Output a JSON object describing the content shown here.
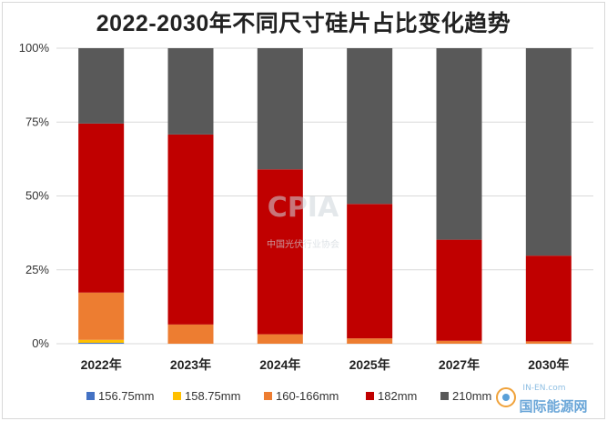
{
  "chart_data": {
    "type": "bar",
    "stacked": true,
    "title": "2022-2030年不同尺寸硅片占比变化趋势",
    "categories": [
      "2022年",
      "2023年",
      "2024年",
      "2025年",
      "2027年",
      "2030年"
    ],
    "ylim": [
      0,
      100
    ],
    "yticks": [
      "0%",
      "25%",
      "50%",
      "75%",
      "100%"
    ],
    "grid": true,
    "legend_position": "bottom",
    "series": [
      {
        "name": "156.75mm",
        "color": "#4472c4",
        "values": [
          0.3,
          0,
          0,
          0,
          0,
          0
        ]
      },
      {
        "name": "158.75mm",
        "color": "#ffc000",
        "values": [
          1.0,
          0,
          0,
          0,
          0,
          0
        ]
      },
      {
        "name": "160-166mm",
        "color": "#ed7d31",
        "values": [
          16.0,
          6.5,
          3.2,
          1.8,
          1.0,
          0.8
        ]
      },
      {
        "name": "182mm",
        "color": "#c00000",
        "values": [
          57.2,
          64.3,
          55.8,
          45.5,
          34.2,
          29.0
        ]
      },
      {
        "name": "210mm",
        "color": "#595959",
        "values": [
          25.5,
          29.2,
          41.0,
          52.7,
          64.8,
          70.2
        ]
      }
    ]
  },
  "watermark": {
    "main": "CPIA",
    "sub": "中国光伏行业协会"
  },
  "logo": {
    "name": "国际能源网",
    "url": "IN-EN.com"
  }
}
